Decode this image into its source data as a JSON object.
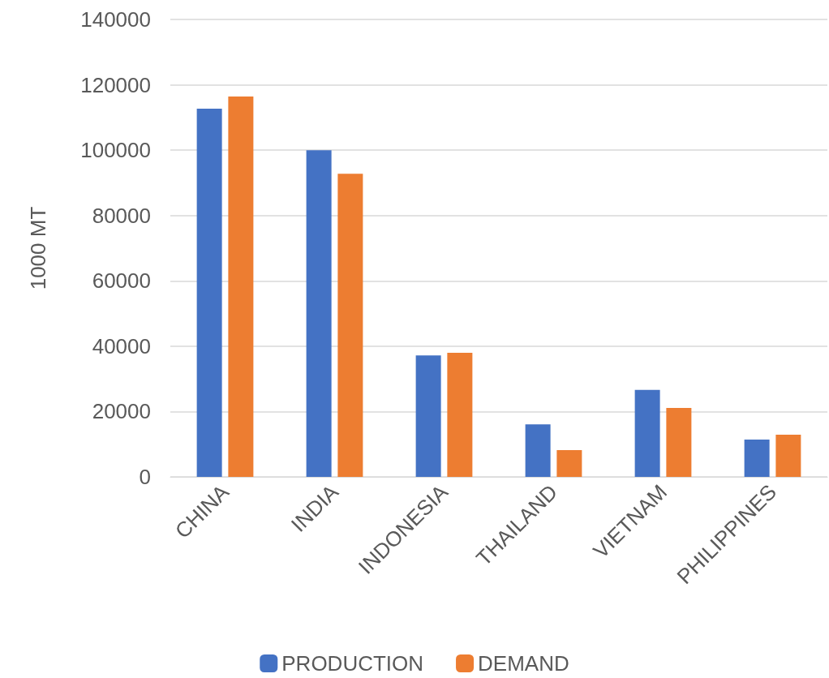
{
  "chart_data": {
    "type": "bar",
    "ylabel": "1000 MT",
    "categories": [
      "CHINA",
      "INDIA",
      "INDONESIA",
      "THAILAND",
      "VIETNAM",
      "PHILIPPINES"
    ],
    "series": [
      {
        "name": "PRODUCTION",
        "color": "#4472c4",
        "values": [
          112700,
          100000,
          37200,
          16100,
          26600,
          11400
        ]
      },
      {
        "name": "DEMAND",
        "color": "#ed7d31",
        "values": [
          116400,
          92800,
          38000,
          8200,
          21100,
          12900
        ]
      }
    ],
    "ylim": [
      0,
      140000
    ],
    "yticks": [
      0,
      20000,
      40000,
      60000,
      80000,
      100000,
      120000,
      140000
    ],
    "grid": "y",
    "legend": "bottom"
  }
}
